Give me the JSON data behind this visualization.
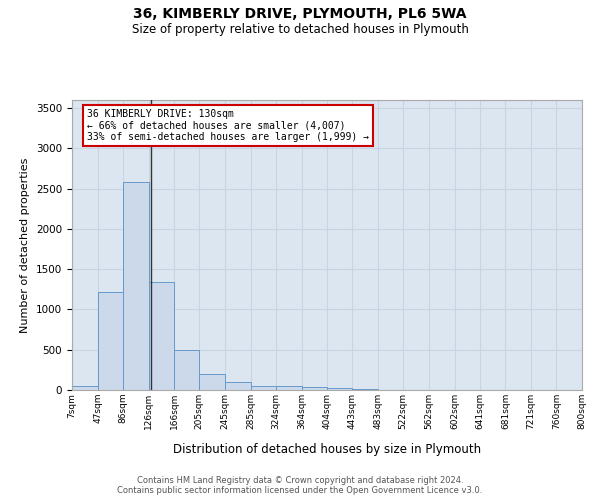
{
  "title1": "36, KIMBERLY DRIVE, PLYMOUTH, PL6 5WA",
  "title2": "Size of property relative to detached houses in Plymouth",
  "xlabel": "Distribution of detached houses by size in Plymouth",
  "ylabel": "Number of detached properties",
  "bin_labels": [
    "7sqm",
    "47sqm",
    "86sqm",
    "126sqm",
    "166sqm",
    "205sqm",
    "245sqm",
    "285sqm",
    "324sqm",
    "364sqm",
    "404sqm",
    "443sqm",
    "483sqm",
    "522sqm",
    "562sqm",
    "602sqm",
    "641sqm",
    "681sqm",
    "721sqm",
    "760sqm",
    "800sqm"
  ],
  "bin_edges": [
    7,
    47,
    86,
    126,
    166,
    205,
    245,
    285,
    324,
    364,
    404,
    443,
    483,
    522,
    562,
    602,
    641,
    681,
    721,
    760,
    800
  ],
  "bar_values": [
    50,
    1220,
    2580,
    1340,
    500,
    195,
    100,
    50,
    45,
    35,
    30,
    10,
    5,
    3,
    2,
    1,
    1,
    0,
    0,
    0
  ],
  "bar_color": "#ccd9ea",
  "bar_edgecolor": "#6699cc",
  "grid_color": "#c8d4e3",
  "bg_color": "#dce6f0",
  "property_line_x": 130,
  "annotation_title": "36 KIMBERLY DRIVE: 130sqm",
  "annotation_line1": "← 66% of detached houses are smaller (4,007)",
  "annotation_line2": "33% of semi-detached houses are larger (1,999) →",
  "annotation_box_color": "#cc0000",
  "ylim": [
    0,
    3600
  ],
  "yticks": [
    0,
    500,
    1000,
    1500,
    2000,
    2500,
    3000,
    3500
  ],
  "footer1": "Contains HM Land Registry data © Crown copyright and database right 2024.",
  "footer2": "Contains public sector information licensed under the Open Government Licence v3.0."
}
